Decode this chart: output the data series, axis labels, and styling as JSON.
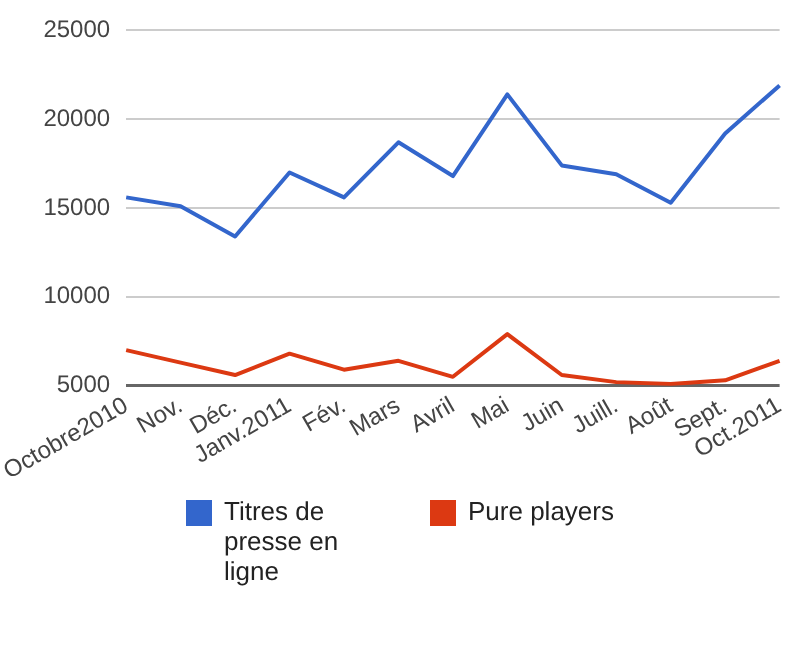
{
  "chart_data": {
    "type": "line",
    "categories": [
      "Octobre2010",
      "Nov.",
      "Déc.",
      "Janv.2011",
      "Fév.",
      "Mars",
      "Avril",
      "Mai",
      "Juin",
      "Juill.",
      "Août",
      "Sept.",
      "Oct.2011"
    ],
    "series": [
      {
        "name": "Titres de presse en ligne",
        "color": "#3366cc",
        "values": [
          15600,
          15100,
          13400,
          17000,
          15600,
          18700,
          16800,
          21400,
          17400,
          16900,
          15300,
          19200,
          21900
        ]
      },
      {
        "name": "Pure players",
        "color": "#dc3912",
        "values": [
          7000,
          6300,
          5600,
          6800,
          5900,
          6400,
          5500,
          7900,
          5600,
          5200,
          5100,
          5300,
          6400
        ]
      }
    ],
    "ylim": [
      5000,
      25000
    ],
    "yticks": [
      5000,
      10000,
      15000,
      20000,
      25000
    ],
    "grid": "y",
    "legend": "bottom",
    "marker": "none",
    "line_style": "solid"
  }
}
